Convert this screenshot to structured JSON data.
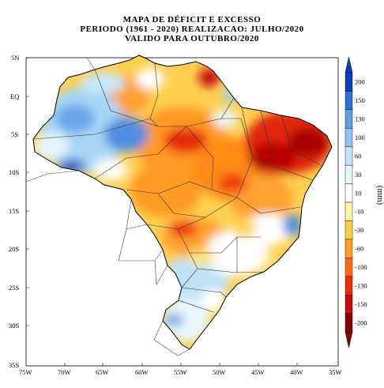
{
  "title": {
    "line1": "MAPA DE DÉFICIT E EXCESSO",
    "line2": "PERIODO (1961 - 2020) REALIZACAO: JULHO/2020",
    "line3": "VALIDO PARA OUTUBRO/2020"
  },
  "axes": {
    "lat_labels": [
      "5N",
      "EQ",
      "5S",
      "10S",
      "15S",
      "20S",
      "25S",
      "30S",
      "35S"
    ],
    "lon_labels": [
      "75W",
      "70W",
      "65W",
      "60W",
      "55W",
      "50W",
      "45W",
      "40W",
      "35W"
    ]
  },
  "colorbar": {
    "unit": "(mm)",
    "labels": [
      "200",
      "150",
      "130",
      "100",
      "60",
      "30",
      "10",
      "-10",
      "-30",
      "-60",
      "-100",
      "-130",
      "-150",
      "-200"
    ],
    "colors": [
      "#0d3fb8",
      "#2e6fd6",
      "#5b9ee6",
      "#8fc4f0",
      "#c4e4f8",
      "#e8f6fc",
      "#ffffff",
      "#fff6a8",
      "#ffd040",
      "#ffa020",
      "#ff6a10",
      "#ee2a0a",
      "#c80a0a",
      "#8a0000"
    ]
  }
}
